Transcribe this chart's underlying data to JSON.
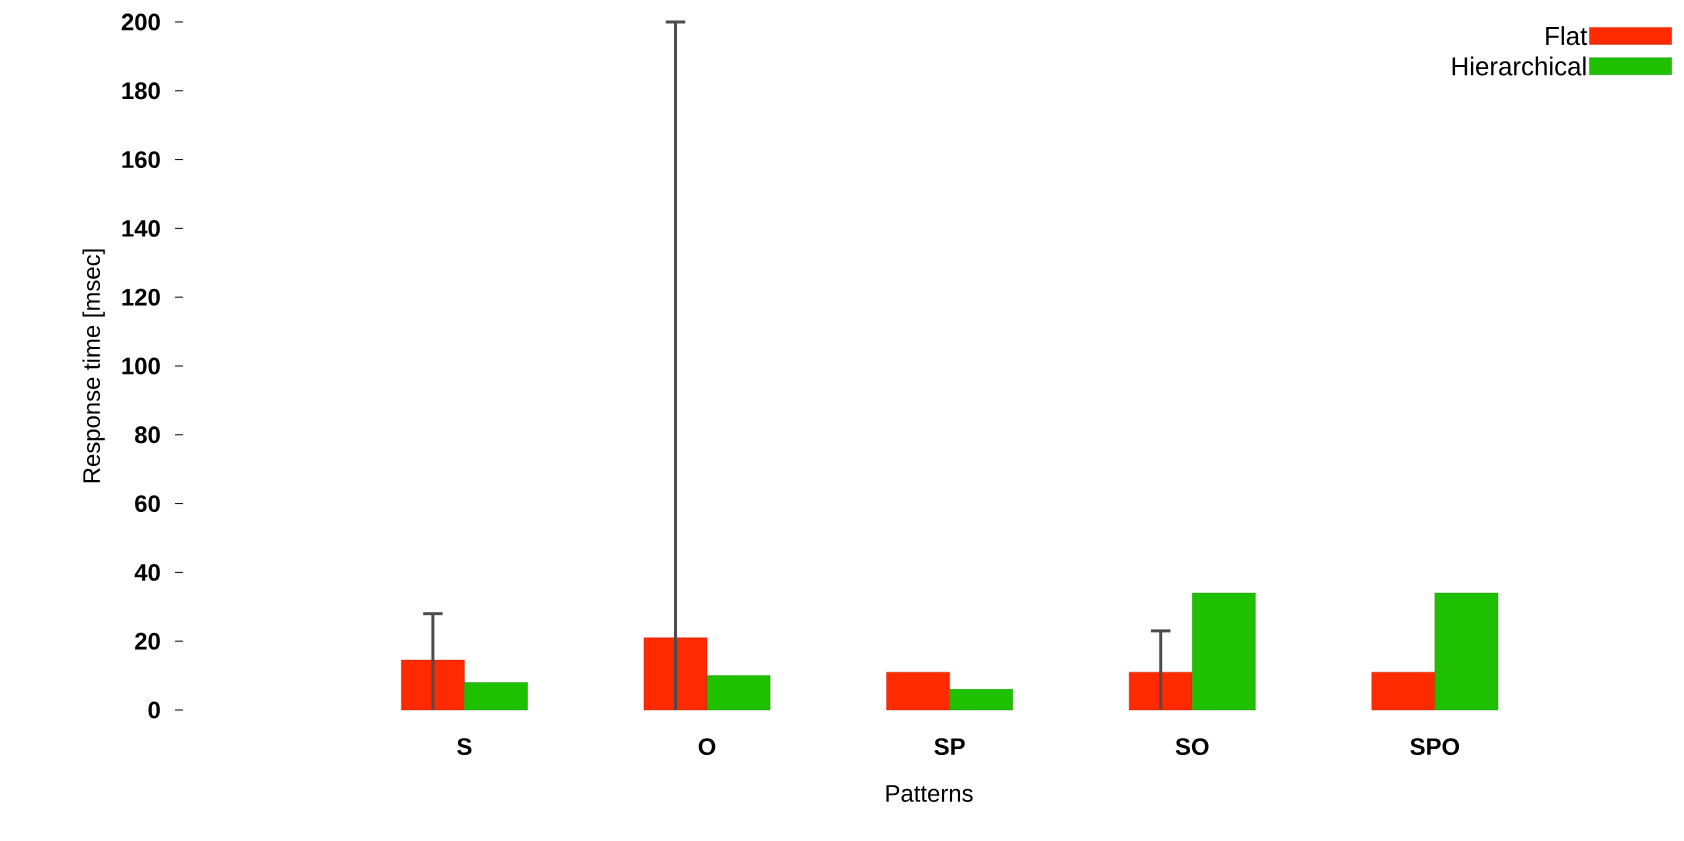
{
  "chart_data": {
    "type": "bar",
    "xlabel": "Patterns",
    "ylabel": "Response time [msec]",
    "categories": [
      "S",
      "O",
      "SP",
      "SO",
      "SPO"
    ],
    "series": [
      {
        "name": "Flat",
        "color": "#ff2a00",
        "values": [
          14.5,
          21,
          11,
          11,
          11
        ],
        "errors": [
          [
            0,
            28
          ],
          [
            0,
            200
          ],
          null,
          [
            0,
            23
          ],
          null
        ]
      },
      {
        "name": "Hierarchical",
        "color": "#1ec000",
        "values": [
          8,
          10,
          6,
          34,
          34
        ]
      }
    ],
    "ylim": [
      0,
      200
    ],
    "yticks": [
      0,
      20,
      40,
      60,
      80,
      100,
      120,
      140,
      160,
      180,
      200
    ],
    "grid": false,
    "legend": "top right"
  }
}
